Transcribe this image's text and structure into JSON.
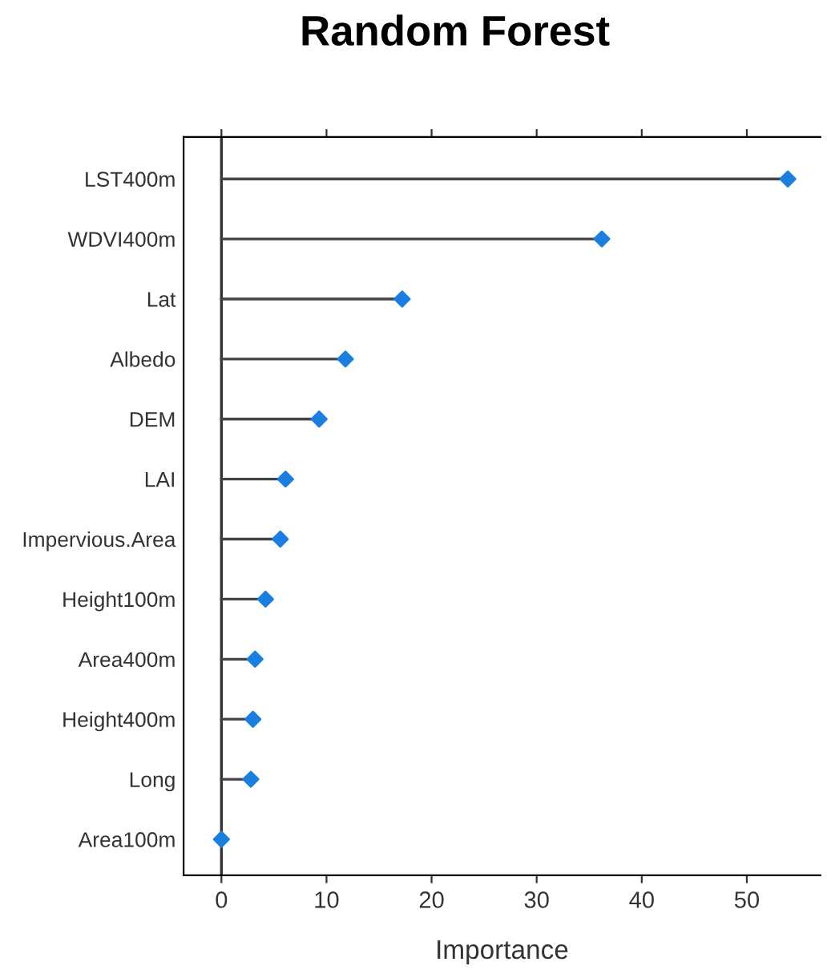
{
  "chart_data": {
    "type": "lollipop",
    "title": "Random Forest",
    "xlabel": "Importance",
    "orientation": "horizontal",
    "categories": [
      "LST400m",
      "WDVI400m",
      "Lat",
      "Albedo",
      "DEM",
      "LAI",
      "Impervious.Area",
      "Height100m",
      "Area400m",
      "Height400m",
      "Long",
      "Area100m"
    ],
    "values": [
      53.9,
      36.2,
      17.2,
      11.8,
      9.3,
      6.1,
      5.6,
      4.2,
      3.2,
      3.0,
      2.8,
      0
    ],
    "color": "#1a7fe0",
    "marker": "diamond",
    "grid": false,
    "xlim": [
      -3.6,
      57
    ],
    "xticks": [
      0,
      10,
      20,
      30,
      40,
      50
    ],
    "ref_lines": [
      {
        "axis": "x",
        "value": 0,
        "color": "#333333"
      }
    ]
  }
}
